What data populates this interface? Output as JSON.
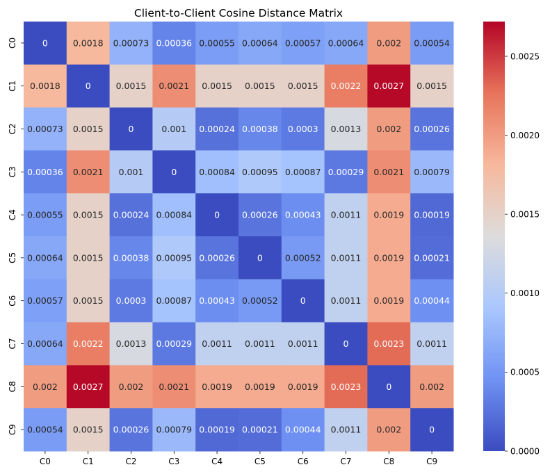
{
  "chart_data": {
    "type": "heatmap",
    "title": "Client-to-Client Cosine Distance Matrix",
    "xlabel": "",
    "ylabel": "",
    "x_categories": [
      "C0",
      "C1",
      "C2",
      "C3",
      "C4",
      "C5",
      "C6",
      "C7",
      "C8",
      "C9"
    ],
    "y_categories": [
      "C0",
      "C1",
      "C2",
      "C3",
      "C4",
      "C5",
      "C6",
      "C7",
      "C8",
      "C9"
    ],
    "values": [
      [
        0,
        0.0018,
        0.00073,
        0.00036,
        0.00055,
        0.00064,
        0.00057,
        0.00064,
        0.002,
        0.00054
      ],
      [
        0.0018,
        0,
        0.0015,
        0.0021,
        0.0015,
        0.0015,
        0.0015,
        0.0022,
        0.0027,
        0.0015
      ],
      [
        0.00073,
        0.0015,
        0,
        0.001,
        0.00024,
        0.00038,
        0.0003,
        0.0013,
        0.002,
        0.00026
      ],
      [
        0.00036,
        0.0021,
        0.001,
        0,
        0.00084,
        0.00095,
        0.00087,
        0.00029,
        0.0021,
        0.00079
      ],
      [
        0.00055,
        0.0015,
        0.00024,
        0.00084,
        0,
        0.00026,
        0.00043,
        0.0011,
        0.0019,
        0.00019
      ],
      [
        0.00064,
        0.0015,
        0.00038,
        0.00095,
        0.00026,
        0,
        0.00052,
        0.0011,
        0.0019,
        0.00021
      ],
      [
        0.00057,
        0.0015,
        0.0003,
        0.00087,
        0.00043,
        0.00052,
        0,
        0.0011,
        0.0019,
        0.00044
      ],
      [
        0.00064,
        0.0022,
        0.0013,
        0.00029,
        0.0011,
        0.0011,
        0.0011,
        0,
        0.0023,
        0.0011
      ],
      [
        0.002,
        0.0027,
        0.002,
        0.0021,
        0.0019,
        0.0019,
        0.0019,
        0.0023,
        0,
        0.002
      ],
      [
        0.00054,
        0.0015,
        0.00026,
        0.00079,
        0.00019,
        0.00021,
        0.00044,
        0.0011,
        0.002,
        0
      ]
    ],
    "cell_labels": [
      [
        "0",
        "0.0018",
        "0.00073",
        "0.00036",
        "0.00055",
        "0.00064",
        "0.00057",
        "0.00064",
        "0.002",
        "0.00054"
      ],
      [
        "0.0018",
        "0",
        "0.0015",
        "0.0021",
        "0.0015",
        "0.0015",
        "0.0015",
        "0.0022",
        "0.0027",
        "0.0015"
      ],
      [
        "0.00073",
        "0.0015",
        "0",
        "0.001",
        "0.00024",
        "0.00038",
        "0.0003",
        "0.0013",
        "0.002",
        "0.00026"
      ],
      [
        "0.00036",
        "0.0021",
        "0.001",
        "0",
        "0.00084",
        "0.00095",
        "0.00087",
        "0.00029",
        "0.0021",
        "0.00079"
      ],
      [
        "0.00055",
        "0.0015",
        "0.00024",
        "0.00084",
        "0",
        "0.00026",
        "0.00043",
        "0.0011",
        "0.0019",
        "0.00019"
      ],
      [
        "0.00064",
        "0.0015",
        "0.00038",
        "0.00095",
        "0.00026",
        "0",
        "0.00052",
        "0.0011",
        "0.0019",
        "0.00021"
      ],
      [
        "0.00057",
        "0.0015",
        "0.0003",
        "0.00087",
        "0.00043",
        "0.00052",
        "0",
        "0.0011",
        "0.0019",
        "0.00044"
      ],
      [
        "0.00064",
        "0.0022",
        "0.0013",
        "0.00029",
        "0.0011",
        "0.0011",
        "0.0011",
        "0",
        "0.0023",
        "0.0011"
      ],
      [
        "0.002",
        "0.0027",
        "0.002",
        "0.0021",
        "0.0019",
        "0.0019",
        "0.0019",
        "0.0023",
        "0",
        "0.002"
      ],
      [
        "0.00054",
        "0.0015",
        "0.00026",
        "0.00079",
        "0.00019",
        "0.00021",
        "0.00044",
        "0.0011",
        "0.002",
        "0"
      ]
    ],
    "colormap": "coolwarm",
    "colormap_stops": [
      "#3b4cc0",
      "#6f92f3",
      "#aac7fd",
      "#dddcdc",
      "#f7b89c",
      "#e7745b",
      "#b40426"
    ],
    "vmin": 0,
    "vmax": 0.00272,
    "colorbar_ticks": [
      0,
      0.0005,
      0.001,
      0.0015,
      0.002,
      0.0025
    ],
    "colorbar_tick_labels": [
      "0.0000",
      "0.0005",
      "0.0010",
      "0.0015",
      "0.0020",
      "0.0025"
    ],
    "grid": false
  }
}
